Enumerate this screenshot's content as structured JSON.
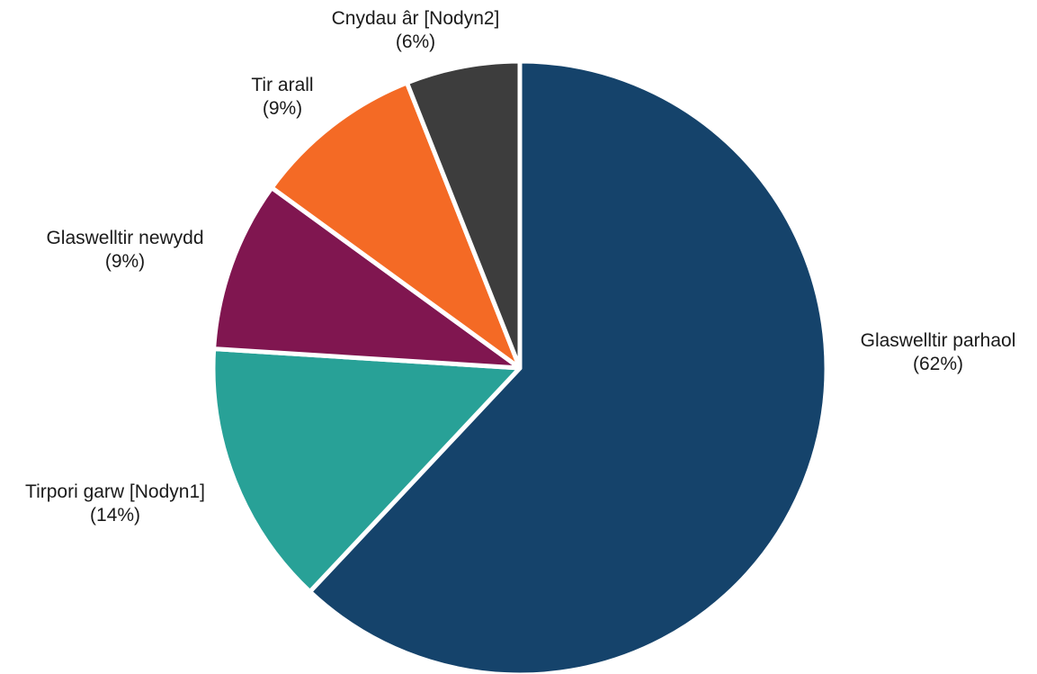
{
  "chart_data": {
    "type": "pie",
    "title": "",
    "slices": [
      {
        "name": "Glaswelltir parhaol",
        "value": 62,
        "percent_label": "(62%)",
        "color": "#15436b"
      },
      {
        "name": "Tirpori garw [Nodyn1]",
        "value": 14,
        "percent_label": "(14%)",
        "color": "#28a197"
      },
      {
        "name": "Glaswelltir newydd",
        "value": 9,
        "percent_label": "(9%)",
        "color": "#801650"
      },
      {
        "name": "Tir arall",
        "value": 9,
        "percent_label": "(9%)",
        "color": "#f46a25"
      },
      {
        "name": "Cnydau âr [Nodyn2]",
        "value": 6,
        "percent_label": "(6%)",
        "color": "#3d3d3d"
      }
    ],
    "start_angle": "12 o'clock",
    "direction": "clockwise",
    "slice_border_color": "#ffffff",
    "legend": "none; labels outside slices"
  }
}
